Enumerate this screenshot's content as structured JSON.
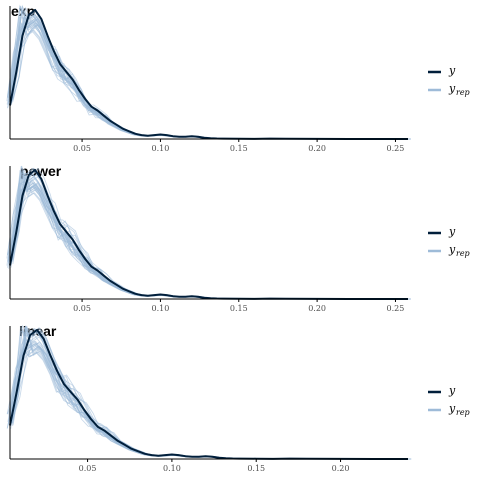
{
  "colors": {
    "observed": "#011f3b",
    "replicated": "#9ebbd8",
    "axis": "#000000"
  },
  "chart_data": [
    {
      "type": "line",
      "title": "exp",
      "xlim": [
        0.004,
        0.258
      ],
      "ylim": [
        0,
        1.03
      ],
      "xticks": [
        0.05,
        0.1,
        0.15,
        0.2,
        0.25
      ],
      "xtick_labels": [
        "0.05",
        "0.10",
        "0.15",
        "0.20",
        "0.25"
      ],
      "legend": {
        "position": "right",
        "entries": [
          {
            "label": "y",
            "sub": ""
          },
          {
            "label": "y",
            "sub": "rep"
          }
        ]
      },
      "series": [
        {
          "name": "y",
          "x": [
            0.004,
            0.008,
            0.012,
            0.016,
            0.02,
            0.024,
            0.028,
            0.032,
            0.036,
            0.04,
            0.044,
            0.048,
            0.052,
            0.056,
            0.06,
            0.064,
            0.068,
            0.072,
            0.076,
            0.08,
            0.084,
            0.088,
            0.092,
            0.096,
            0.1,
            0.104,
            0.108,
            0.112,
            0.116,
            0.12,
            0.124,
            0.128,
            0.132,
            0.136,
            0.14,
            0.15,
            0.16,
            0.17,
            0.18,
            0.2,
            0.22,
            0.258
          ],
          "y": [
            0.26,
            0.52,
            0.8,
            0.96,
            1.0,
            0.93,
            0.8,
            0.68,
            0.58,
            0.52,
            0.46,
            0.38,
            0.31,
            0.25,
            0.22,
            0.18,
            0.14,
            0.11,
            0.08,
            0.06,
            0.04,
            0.03,
            0.025,
            0.03,
            0.035,
            0.03,
            0.022,
            0.018,
            0.017,
            0.022,
            0.018,
            0.01,
            0.006,
            0.004,
            0.003,
            0.002,
            0.001,
            0.003,
            0.002,
            0.001,
            0.0,
            0.0
          ]
        }
      ]
    },
    {
      "type": "line",
      "title": "power",
      "xlim": [
        0.004,
        0.258
      ],
      "ylim": [
        0,
        1.03
      ],
      "xticks": [
        0.05,
        0.1,
        0.15,
        0.2,
        0.25
      ],
      "xtick_labels": [
        "0.05",
        "0.10",
        "0.15",
        "0.20",
        "0.25"
      ],
      "legend": {
        "position": "right",
        "entries": [
          {
            "label": "y",
            "sub": ""
          },
          {
            "label": "y",
            "sub": "rep"
          }
        ]
      },
      "series": [
        {
          "name": "y",
          "x": [
            0.004,
            0.008,
            0.012,
            0.016,
            0.02,
            0.024,
            0.028,
            0.032,
            0.036,
            0.04,
            0.044,
            0.048,
            0.052,
            0.056,
            0.06,
            0.064,
            0.068,
            0.072,
            0.076,
            0.08,
            0.084,
            0.088,
            0.092,
            0.096,
            0.1,
            0.104,
            0.108,
            0.112,
            0.116,
            0.12,
            0.124,
            0.128,
            0.132,
            0.136,
            0.14,
            0.15,
            0.16,
            0.17,
            0.18,
            0.2,
            0.22,
            0.258
          ],
          "y": [
            0.26,
            0.52,
            0.8,
            0.96,
            1.0,
            0.93,
            0.8,
            0.68,
            0.58,
            0.52,
            0.46,
            0.38,
            0.31,
            0.25,
            0.22,
            0.18,
            0.14,
            0.11,
            0.08,
            0.06,
            0.04,
            0.03,
            0.025,
            0.03,
            0.035,
            0.03,
            0.022,
            0.018,
            0.017,
            0.022,
            0.018,
            0.01,
            0.006,
            0.004,
            0.003,
            0.002,
            0.001,
            0.003,
            0.002,
            0.001,
            0.0,
            0.0
          ]
        }
      ]
    },
    {
      "type": "line",
      "title": "linear",
      "xlim": [
        0.004,
        0.24
      ],
      "ylim": [
        0,
        1.03
      ],
      "xticks": [
        0.05,
        0.1,
        0.15,
        0.2
      ],
      "xtick_labels": [
        "0.05",
        "0.10",
        "0.15",
        "0.20"
      ],
      "legend": {
        "position": "right",
        "entries": [
          {
            "label": "y",
            "sub": ""
          },
          {
            "label": "y",
            "sub": "rep"
          }
        ]
      },
      "series": [
        {
          "name": "y",
          "x": [
            0.004,
            0.008,
            0.012,
            0.016,
            0.02,
            0.024,
            0.028,
            0.032,
            0.036,
            0.04,
            0.044,
            0.048,
            0.052,
            0.056,
            0.06,
            0.064,
            0.068,
            0.072,
            0.076,
            0.08,
            0.084,
            0.088,
            0.092,
            0.096,
            0.1,
            0.104,
            0.108,
            0.112,
            0.116,
            0.12,
            0.124,
            0.128,
            0.132,
            0.136,
            0.14,
            0.15,
            0.16,
            0.17,
            0.18,
            0.2,
            0.22,
            0.24
          ],
          "y": [
            0.26,
            0.52,
            0.8,
            0.96,
            1.0,
            0.93,
            0.8,
            0.68,
            0.58,
            0.52,
            0.46,
            0.38,
            0.31,
            0.25,
            0.22,
            0.18,
            0.14,
            0.11,
            0.08,
            0.06,
            0.04,
            0.03,
            0.025,
            0.03,
            0.035,
            0.03,
            0.022,
            0.018,
            0.017,
            0.022,
            0.018,
            0.01,
            0.006,
            0.004,
            0.003,
            0.002,
            0.001,
            0.003,
            0.002,
            0.001,
            0.0,
            0.0
          ]
        }
      ]
    }
  ]
}
